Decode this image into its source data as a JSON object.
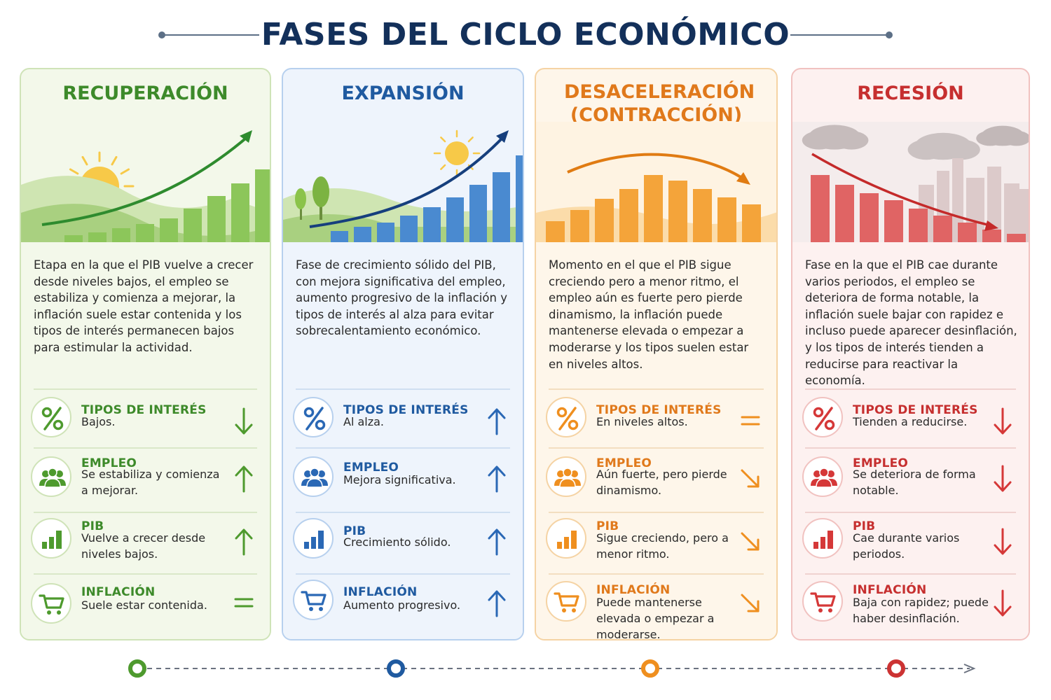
{
  "title": "FASES DEL CICLO ECONÓMICO",
  "colors": {
    "title": "#13305a",
    "recuperacion": "#3d8a2a",
    "expansion": "#1f5aa0",
    "desaceleracion": "#e8891e",
    "recesion": "#cc3333"
  },
  "phases": [
    {
      "title": "RECUPERACIÓN",
      "trend": "rising",
      "description": "Etapa en la que el PIB vuelve a crecer desde niveles bajos, el empleo se estabiliza y comienza a mejorar, la inflación suele estar contenida y los tipos de interés permanecen bajos para estimular la actividad.",
      "indicators": [
        {
          "label": "TIPOS DE INTERÉS",
          "value": "Bajos.",
          "icon": "percent-icon",
          "direction": "down"
        },
        {
          "label": "EMPLEO",
          "value": "Se estabiliza y comienza a mejorar.",
          "icon": "people-icon",
          "direction": "up"
        },
        {
          "label": "PIB",
          "value": "Vuelve a crecer desde niveles bajos.",
          "icon": "bar-chart-icon",
          "direction": "up"
        },
        {
          "label": "INFLACIÓN",
          "value": "Suele estar contenida.",
          "icon": "cart-icon",
          "direction": "equal"
        }
      ]
    },
    {
      "title": "EXPANSIÓN",
      "trend": "strong-rising",
      "description": "Fase de crecimiento sólido del PIB, con mejora significativa del empleo, aumento progresivo de la inflación y tipos de interés al alza para evitar sobrecalentamiento económico.",
      "indicators": [
        {
          "label": "TIPOS DE INTERÉS",
          "value": "Al alza.",
          "icon": "percent-icon",
          "direction": "up"
        },
        {
          "label": "EMPLEO",
          "value": "Mejora significativa.",
          "icon": "people-icon",
          "direction": "up"
        },
        {
          "label": "PIB",
          "value": "Crecimiento sólido.",
          "icon": "bar-chart-icon",
          "direction": "up"
        },
        {
          "label": "INFLACIÓN",
          "value": "Aumento progresivo.",
          "icon": "cart-icon",
          "direction": "up"
        }
      ]
    },
    {
      "title": "DESACELERACIÓN (CONTRACCIÓN)",
      "trend": "peaking",
      "description": "Momento en el que el PIB sigue creciendo pero a menor ritmo, el empleo aún es fuerte pero pierde dinamismo, la inflación puede mantenerse elevada o empezar a moderarse y los tipos suelen estar en niveles altos.",
      "indicators": [
        {
          "label": "TIPOS DE INTERÉS",
          "value": "En niveles altos.",
          "icon": "percent-icon",
          "direction": "equal"
        },
        {
          "label": "EMPLEO",
          "value": "Aún fuerte, pero pierde dinamismo.",
          "icon": "people-icon",
          "direction": "down-right"
        },
        {
          "label": "PIB",
          "value": "Sigue creciendo, pero a menor ritmo.",
          "icon": "bar-chart-icon",
          "direction": "down-right"
        },
        {
          "label": "INFLACIÓN",
          "value": "Puede mantenerse elevada o empezar a moderarse.",
          "icon": "cart-icon",
          "direction": "down-right"
        }
      ]
    },
    {
      "title": "RECESIÓN",
      "trend": "falling",
      "description": "Fase en la que el PIB cae durante varios periodos, el empleo se deteriora de forma notable, la inflación suele bajar con rapidez e incluso puede aparecer desinflación, y los tipos de interés tienden a reducirse para reactivar la economía.",
      "indicators": [
        {
          "label": "TIPOS DE INTERÉS",
          "value": "Tienden a reducirse.",
          "icon": "percent-icon",
          "direction": "down"
        },
        {
          "label": "EMPLEO",
          "value": "Se deteriora de forma notable.",
          "icon": "people-icon",
          "direction": "down"
        },
        {
          "label": "PIB",
          "value": "Cae durante varios periodos.",
          "icon": "bar-chart-icon",
          "direction": "down"
        },
        {
          "label": "INFLACIÓN",
          "value": "Baja con rapidez; puede haber desinflación.",
          "icon": "cart-icon",
          "direction": "down"
        }
      ]
    }
  ]
}
